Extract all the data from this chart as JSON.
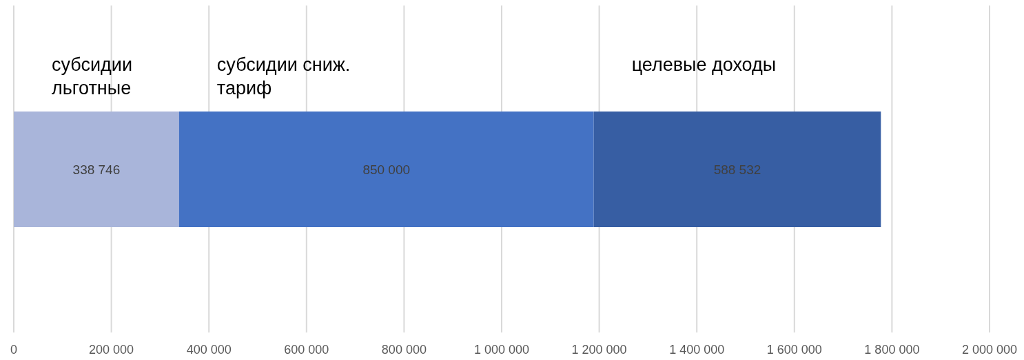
{
  "chart_data": {
    "type": "bar",
    "orientation": "horizontal",
    "stacked": true,
    "categories": [
      null
    ],
    "series": [
      {
        "name": "субсидии льготные",
        "color": "#a9b5da",
        "values": [
          338746
        ]
      },
      {
        "name": "субсидии сниж. тариф",
        "color": "#4472c4",
        "values": [
          850000
        ]
      },
      {
        "name": "целевые доходы",
        "color": "#375ea3",
        "values": [
          588532
        ]
      }
    ],
    "xlim": [
      0,
      2000000
    ],
    "xticks": [
      {
        "value": 0,
        "label": "0"
      },
      {
        "value": 200000,
        "label": "200 000"
      },
      {
        "value": 400000,
        "label": "400 000"
      },
      {
        "value": 600000,
        "label": "600 000"
      },
      {
        "value": 800000,
        "label": "800 000"
      },
      {
        "value": 1000000,
        "label": "1 000 000"
      },
      {
        "value": 1200000,
        "label": "1 200 000"
      },
      {
        "value": 1400000,
        "label": "1 400 000"
      },
      {
        "value": 1600000,
        "label": "1 600 000"
      },
      {
        "value": 1800000,
        "label": "1 800 000"
      },
      {
        "value": 2000000,
        "label": "2 000 000"
      }
    ],
    "grid": "x",
    "data_labels": true
  }
}
